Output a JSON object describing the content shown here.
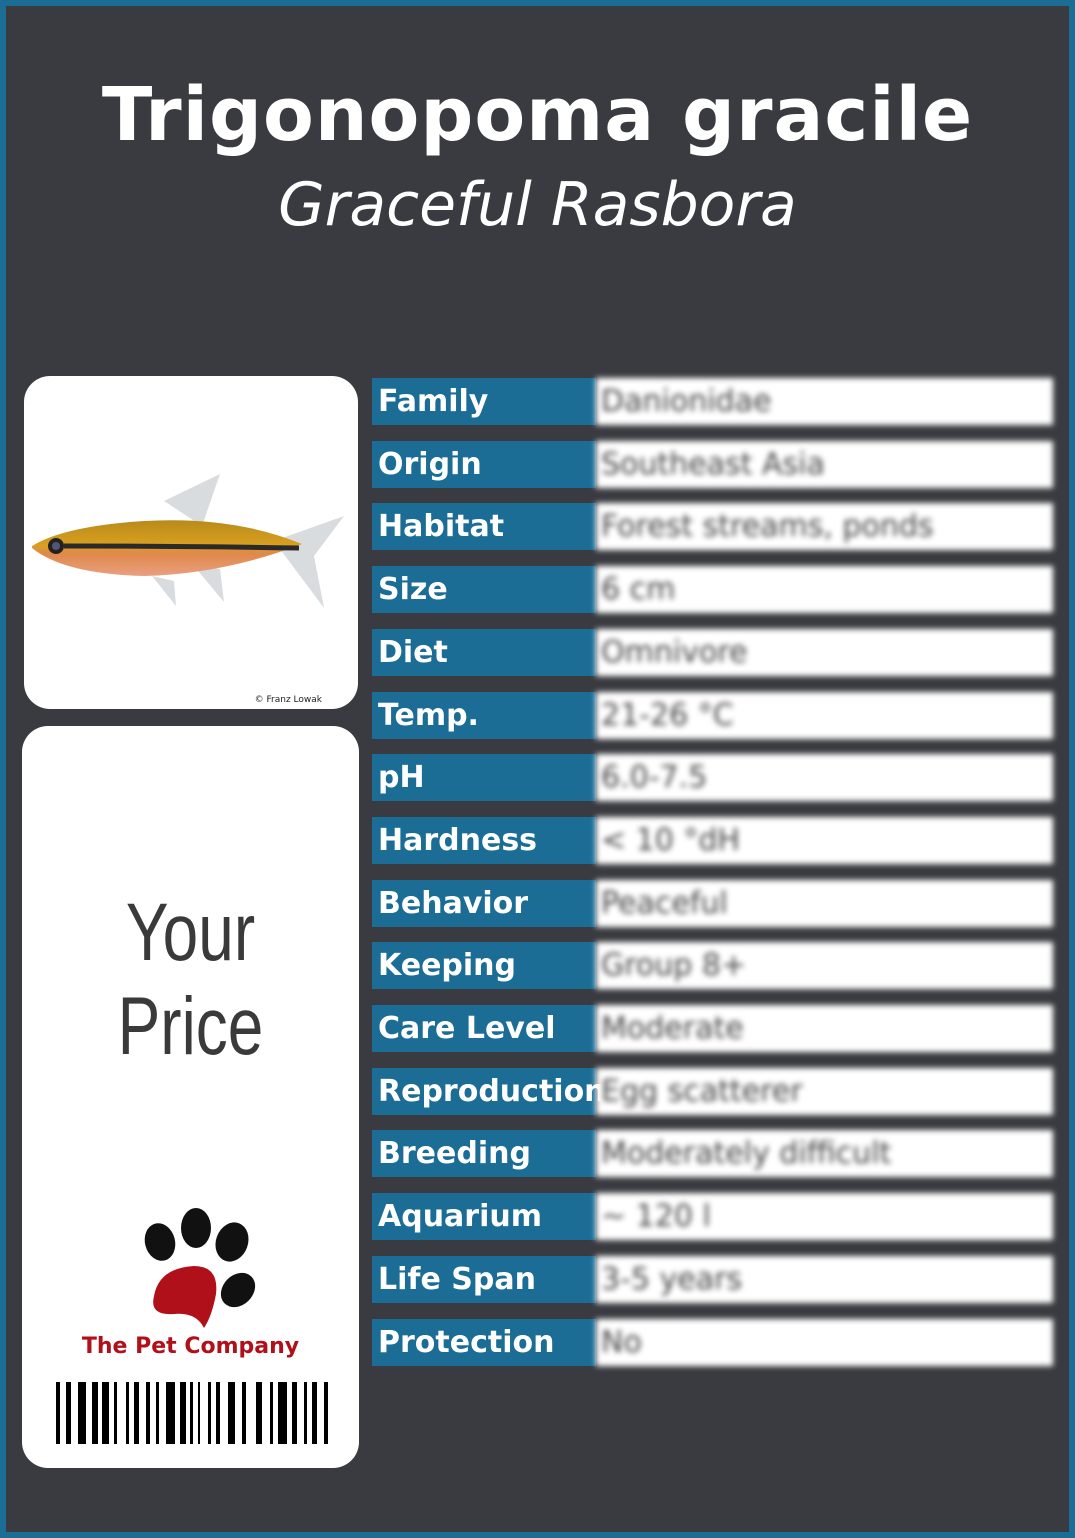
{
  "header": {
    "title": "Trigonopoma gracile",
    "subtitle": "Graceful Rasbora"
  },
  "photo": {
    "credit": "© Franz Lowak"
  },
  "price": {
    "label": "Your Price"
  },
  "brand": {
    "name": "The Pet Company",
    "paw_color": "#b0101a"
  },
  "colors": {
    "border": "#1b6d96",
    "background": "#3a3b40",
    "label_cell": "#1b6d96"
  },
  "facts": [
    {
      "label": "Family",
      "value": "Danionidae"
    },
    {
      "label": "Origin",
      "value": "Southeast Asia"
    },
    {
      "label": "Habitat",
      "value": "Forest streams, ponds"
    },
    {
      "label": "Size",
      "value": "6 cm"
    },
    {
      "label": "Diet",
      "value": "Omnivore"
    },
    {
      "label": "Temp.",
      "value": "21-26 °C"
    },
    {
      "label": "pH",
      "value": "6.0-7.5"
    },
    {
      "label": "Hardness",
      "value": "< 10 °dH"
    },
    {
      "label": "Behavior",
      "value": "Peaceful"
    },
    {
      "label": "Keeping",
      "value": "Group 8+"
    },
    {
      "label": "Care Level",
      "value": "Moderate"
    },
    {
      "label": "Reproduction",
      "value": "Egg scatterer"
    },
    {
      "label": "Breeding",
      "value": "Moderately difficult"
    },
    {
      "label": "Aquarium",
      "value": "~ 120 l"
    },
    {
      "label": "Life Span",
      "value": "3-5 years"
    },
    {
      "label": "Protection",
      "value": "No"
    }
  ]
}
